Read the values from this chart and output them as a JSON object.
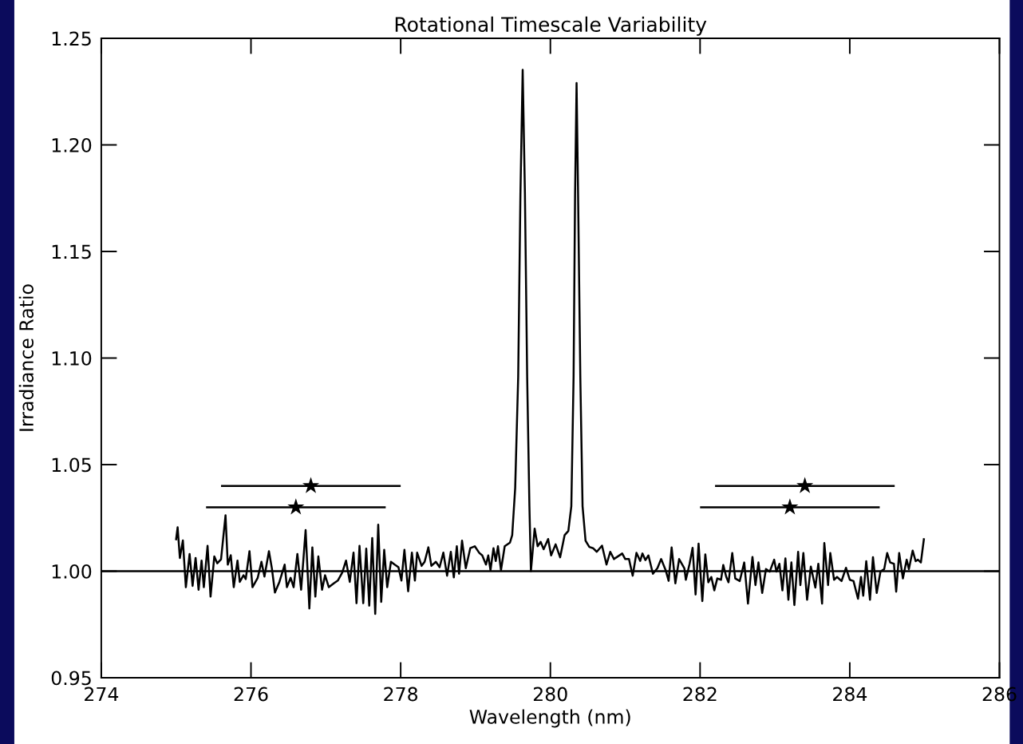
{
  "chart_data": {
    "type": "line",
    "title": "Rotational Timescale Variability",
    "xlabel": "Wavelength (nm)",
    "ylabel": "Irradiance Ratio",
    "xlim": [
      274,
      286
    ],
    "xticks": [
      274,
      276,
      278,
      280,
      282,
      284,
      286
    ],
    "ylim": [
      0.95,
      1.25
    ],
    "yticks": [
      {
        "value": 0.95,
        "label": "0.95"
      },
      {
        "value": 1.0,
        "label": "1.00"
      },
      {
        "value": 1.05,
        "label": "1.05"
      },
      {
        "value": 1.1,
        "label": "1.10"
      },
      {
        "value": 1.15,
        "label": "1.15"
      },
      {
        "value": 1.2,
        "label": "1.20"
      },
      {
        "value": 1.25,
        "label": "1.25"
      }
    ],
    "grid": false,
    "legend": false,
    "ref_lines": [
      {
        "axis": "y",
        "value": 1.0,
        "color": "#000000",
        "line_style": "solid"
      }
    ],
    "series": [
      {
        "color": "#000000",
        "marker": "none",
        "line_style": "solid",
        "x": [
          275.0,
          275.02,
          275.05,
          275.09,
          275.13,
          275.18,
          275.22,
          275.26,
          275.3,
          275.34,
          275.37,
          275.42,
          275.46,
          275.51,
          275.55,
          275.6,
          275.66,
          275.69,
          275.73,
          275.77,
          275.82,
          275.85,
          275.9,
          275.93,
          275.98,
          276.02,
          276.09,
          276.14,
          276.18,
          276.24,
          276.28,
          276.32,
          276.38,
          276.45,
          276.48,
          276.53,
          276.57,
          276.62,
          276.67,
          276.73,
          276.78,
          276.82,
          276.86,
          276.9,
          276.95,
          276.99,
          277.04,
          277.11,
          277.16,
          277.22,
          277.27,
          277.32,
          277.37,
          277.41,
          277.45,
          277.5,
          277.54,
          277.58,
          277.62,
          277.66,
          277.7,
          277.74,
          277.78,
          277.82,
          277.87,
          277.92,
          277.97,
          278.01,
          278.05,
          278.1,
          278.15,
          278.19,
          278.22,
          278.28,
          278.32,
          278.37,
          278.41,
          278.47,
          278.52,
          278.57,
          278.62,
          278.67,
          278.71,
          278.75,
          278.78,
          278.82,
          278.87,
          278.93,
          278.99,
          279.05,
          279.09,
          279.14,
          279.17,
          279.2,
          279.24,
          279.27,
          279.3,
          279.34,
          279.39,
          279.46,
          279.49,
          279.53,
          279.57,
          279.6,
          279.63,
          279.66,
          279.69,
          279.72,
          279.74,
          279.79,
          279.83,
          279.87,
          279.91,
          279.97,
          280.01,
          280.07,
          280.13,
          280.19,
          280.24,
          280.28,
          280.31,
          280.33,
          280.35,
          280.37,
          280.4,
          280.43,
          280.47,
          280.52,
          280.57,
          280.62,
          280.69,
          280.75,
          280.8,
          280.85,
          280.9,
          280.96,
          281.0,
          281.05,
          281.1,
          281.15,
          281.2,
          281.23,
          281.27,
          281.31,
          281.37,
          281.43,
          281.48,
          281.54,
          281.58,
          281.62,
          281.67,
          281.72,
          281.79,
          281.81,
          281.86,
          281.9,
          281.94,
          281.98,
          282.03,
          282.07,
          282.11,
          282.15,
          282.19,
          282.23,
          282.28,
          282.31,
          282.35,
          282.38,
          282.43,
          282.47,
          282.53,
          282.59,
          282.64,
          282.7,
          282.74,
          282.78,
          282.83,
          282.88,
          282.93,
          282.99,
          283.02,
          283.06,
          283.1,
          283.14,
          283.18,
          283.22,
          283.26,
          283.31,
          283.34,
          283.38,
          283.43,
          283.48,
          283.54,
          283.58,
          283.63,
          283.66,
          283.71,
          283.74,
          283.79,
          283.83,
          283.89,
          283.95,
          284.0,
          284.05,
          284.11,
          284.15,
          284.18,
          284.22,
          284.27,
          284.31,
          284.36,
          284.41,
          284.46,
          284.5,
          284.54,
          284.59,
          284.62,
          284.66,
          284.71,
          284.76,
          284.79,
          284.84,
          284.88,
          284.91,
          284.95,
          284.99
        ],
        "values": [
          1.015,
          1.0206,
          1.0062,
          1.0144,
          0.9925,
          1.0081,
          0.9931,
          1.0062,
          0.9913,
          1.005,
          0.9925,
          1.0119,
          0.9881,
          1.0069,
          1.0037,
          1.0056,
          1.0262,
          1.0031,
          1.0075,
          0.9925,
          1.005,
          0.995,
          0.9981,
          0.9963,
          1.0094,
          0.9925,
          0.9969,
          1.0044,
          0.9975,
          1.0094,
          1.0012,
          0.99,
          0.995,
          1.0031,
          0.9925,
          0.9969,
          0.9925,
          1.0081,
          0.9913,
          1.0193,
          0.9825,
          1.0112,
          0.9881,
          1.0069,
          0.9913,
          0.9981,
          0.9925,
          0.9944,
          0.9956,
          0.9994,
          1.005,
          0.995,
          1.0087,
          0.985,
          1.0119,
          0.985,
          1.0106,
          0.9838,
          1.0156,
          0.98,
          1.0218,
          0.9856,
          1.01,
          0.9925,
          1.0044,
          1.0031,
          1.0019,
          0.9956,
          1.01,
          0.9906,
          1.0087,
          0.9956,
          1.0087,
          1.0025,
          1.0044,
          1.0112,
          1.0025,
          1.0044,
          1.0019,
          1.0087,
          0.9979,
          1.0091,
          0.9971,
          1.0117,
          0.9988,
          1.0143,
          1.0014,
          1.0108,
          1.0117,
          1.0086,
          1.0074,
          1.0031,
          1.0074,
          1.0005,
          1.0108,
          1.0048,
          1.0117,
          1.0005,
          1.0117,
          1.0134,
          1.0169,
          1.0391,
          1.0911,
          1.1772,
          1.2352,
          1.1772,
          1.0911,
          1.0305,
          1.0,
          1.02,
          1.0117,
          1.0138,
          1.0103,
          1.0151,
          1.0074,
          1.0126,
          1.0065,
          1.0169,
          1.0189,
          1.0305,
          1.0911,
          1.1772,
          1.229,
          1.1772,
          1.0911,
          1.0305,
          1.0143,
          1.0114,
          1.0108,
          1.0091,
          1.012,
          1.0031,
          1.0091,
          1.0057,
          1.0069,
          1.0083,
          1.0057,
          1.0057,
          0.9979,
          1.0086,
          1.0048,
          1.0083,
          1.0052,
          1.0074,
          0.9988,
          1.0014,
          1.0057,
          1.0005,
          0.9955,
          1.0112,
          0.9943,
          1.0057,
          1.0014,
          0.996,
          1.0035,
          1.011,
          0.9891,
          1.0129,
          0.986,
          1.0079,
          0.9948,
          0.9973,
          0.991,
          0.9966,
          0.996,
          1.0029,
          0.9973,
          0.9948,
          1.0085,
          0.9966,
          0.9954,
          1.0041,
          0.9848,
          1.0067,
          0.9935,
          1.0041,
          0.9898,
          1.001,
          0.9998,
          1.0054,
          0.9998,
          1.0035,
          0.991,
          1.006,
          0.9866,
          1.0041,
          0.9841,
          1.0091,
          0.9935,
          1.0085,
          0.9866,
          1.0022,
          0.9923,
          1.0035,
          0.9848,
          1.0132,
          0.9935,
          1.0085,
          0.996,
          0.9973,
          0.9954,
          1.0016,
          0.996,
          0.9954,
          0.9871,
          0.9973,
          0.9885,
          1.0047,
          0.9866,
          1.0066,
          0.9898,
          0.9998,
          1.001,
          1.0085,
          1.0041,
          1.0035,
          0.9904,
          1.0085,
          0.9966,
          1.0054,
          1.001,
          1.0097,
          1.0047,
          1.0054,
          1.0041,
          1.015
        ]
      },
      {
        "type": "scatter",
        "color": "#000000",
        "marker": "star",
        "x": [
          276.8,
          276.6,
          283.4,
          283.2
        ],
        "values": [
          1.04,
          1.03,
          1.04,
          1.03
        ],
        "xerrors": [
          1.2,
          1.2,
          1.2,
          1.2
        ]
      }
    ]
  }
}
